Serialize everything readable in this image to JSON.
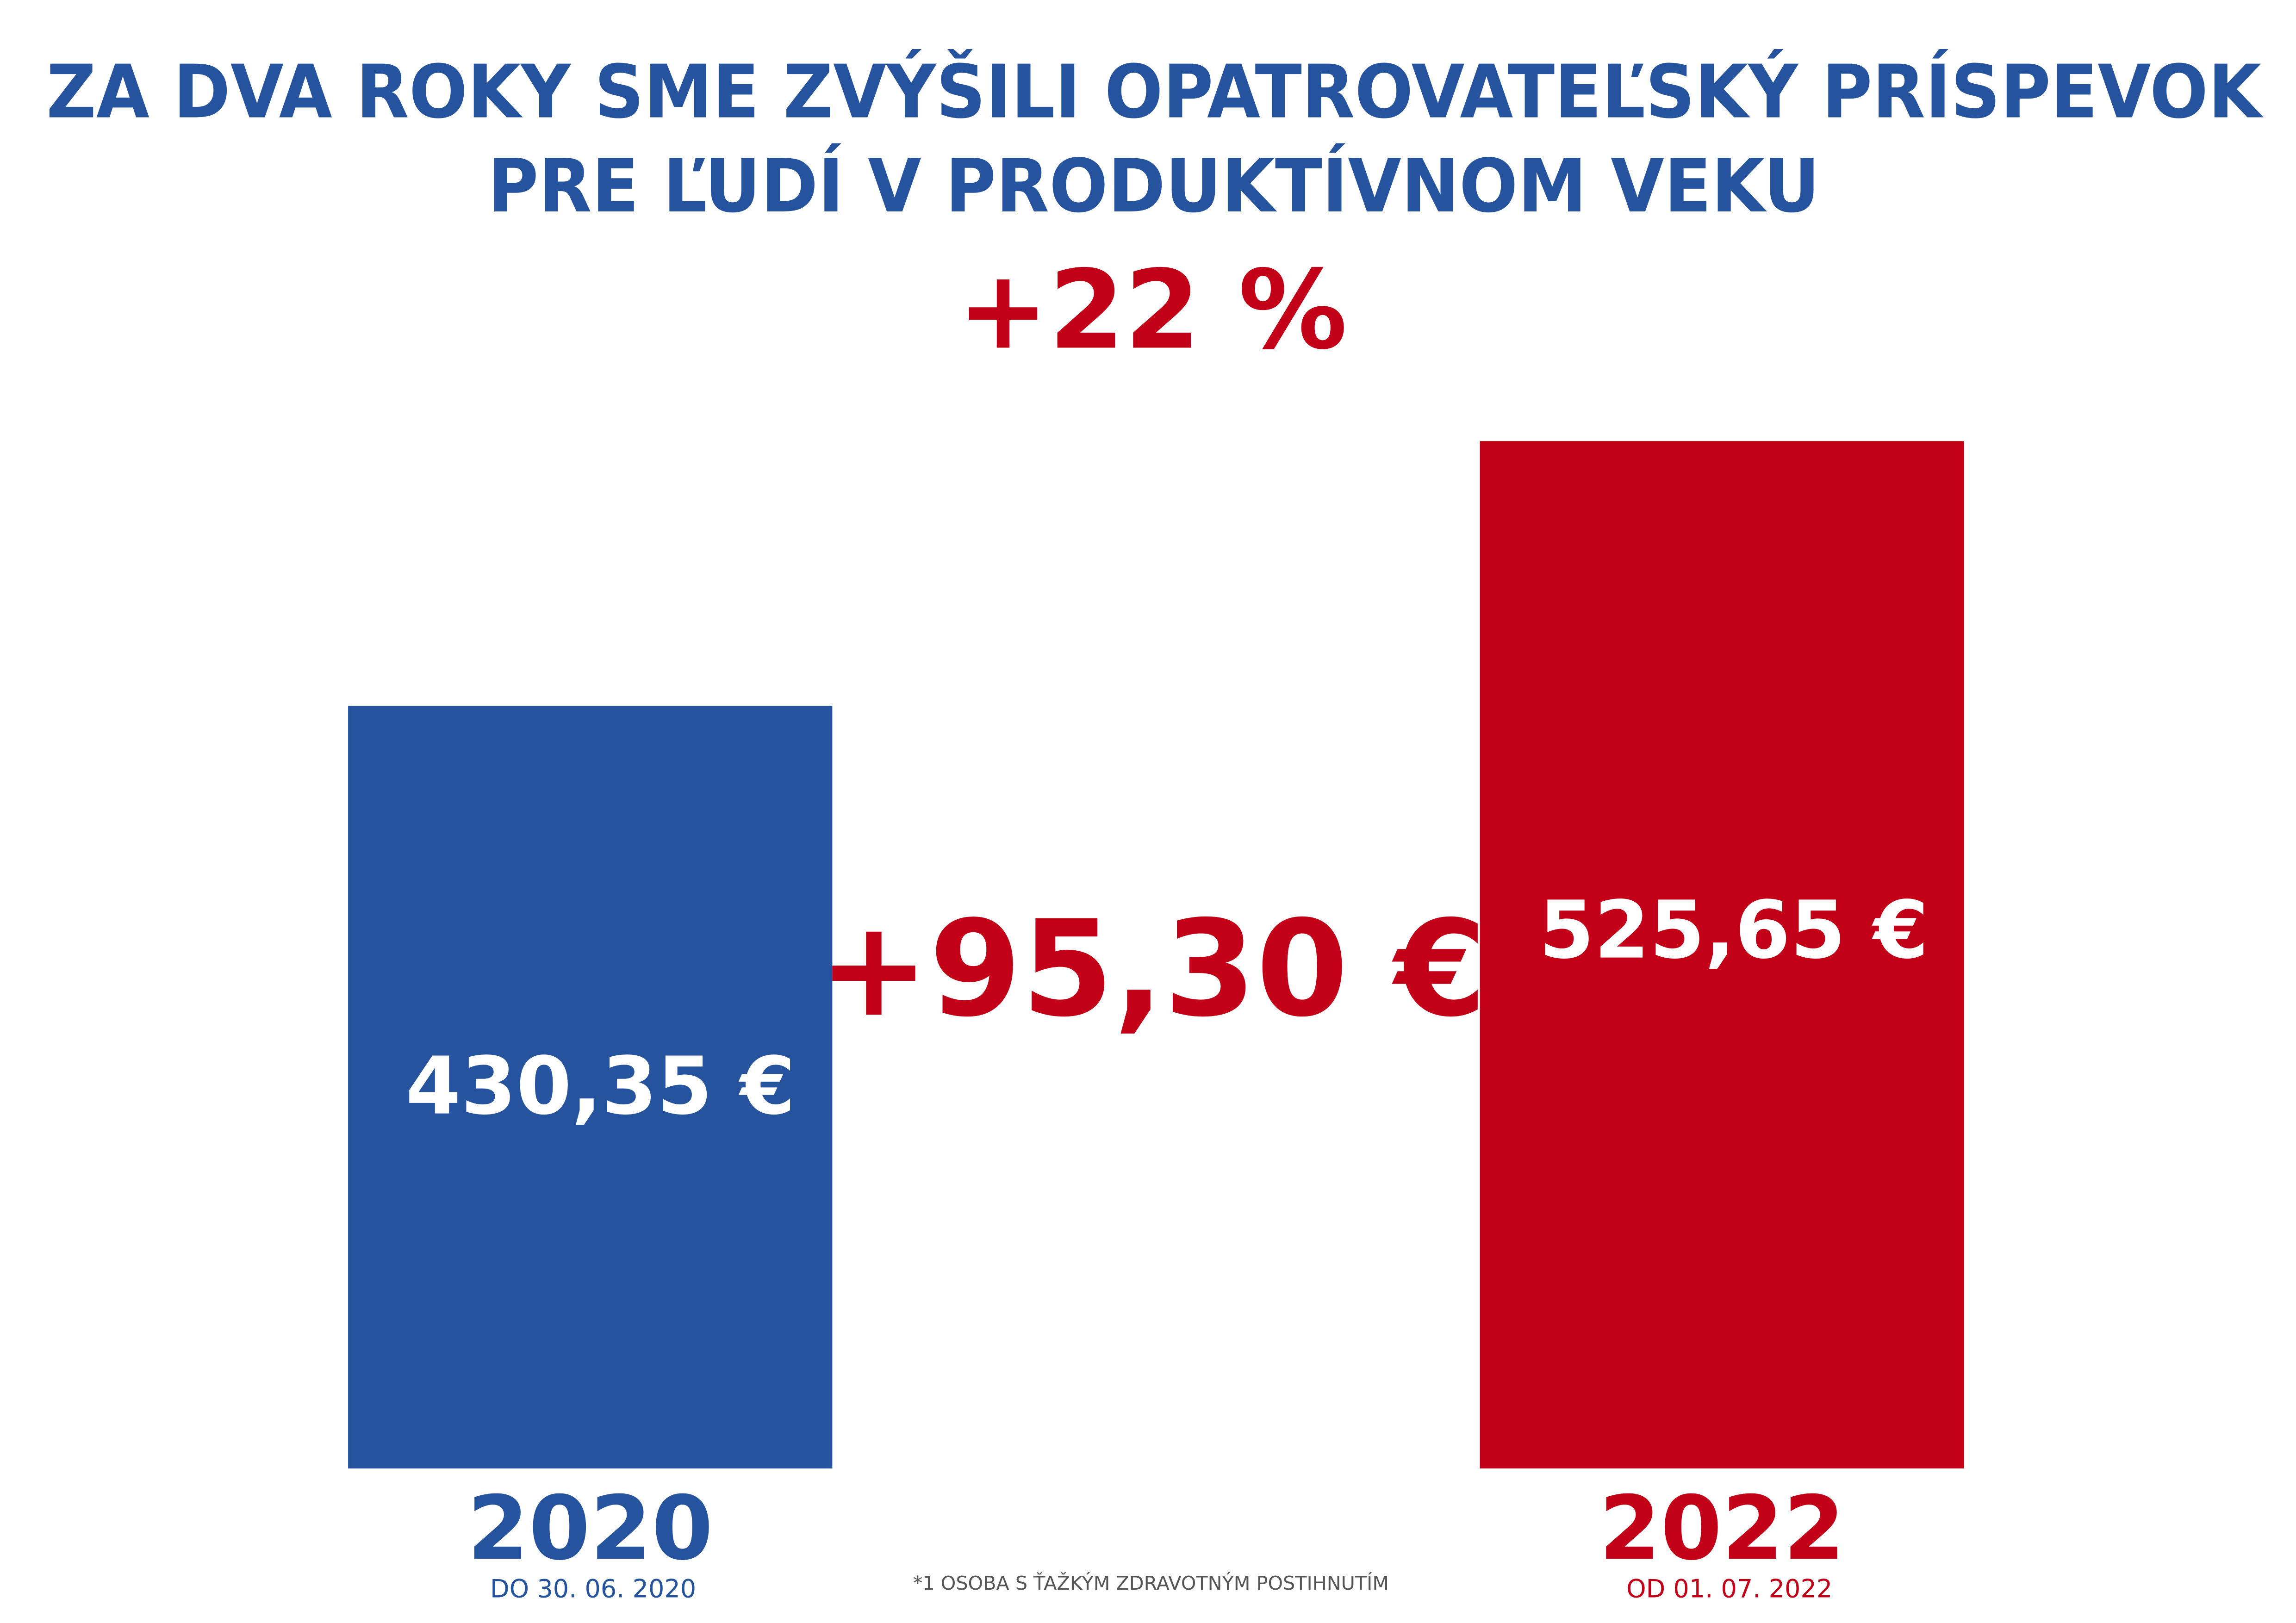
{
  "chart_data": {
    "type": "bar",
    "title": [
      "ZA DVA ROKY SME ZVÝŠILI OPATROVATEĽSKÝ PRÍSPEVOK",
      "PRE ĽUDÍ V PRODUKTÍVNOM VEKU"
    ],
    "percent_change": "+22 %",
    "difference": "+95,30 €",
    "categories": [
      "2020",
      "2022"
    ],
    "category_notes": [
      "DO 30. 06. 2020",
      "OD 01. 07. 2022"
    ],
    "values": [
      430.35,
      525.65
    ],
    "value_labels": [
      "430,35 €",
      "525,65 €"
    ],
    "colors": [
      "#25539e",
      "#c20017"
    ],
    "title_color": "#25539e",
    "annotation_color": "#c20017",
    "ylim": [
      156,
      530
    ],
    "footnote": "*1 OSOBA S ŤAŽKÝM ZDRAVOTNÝM POSTIHNUTÍM"
  }
}
